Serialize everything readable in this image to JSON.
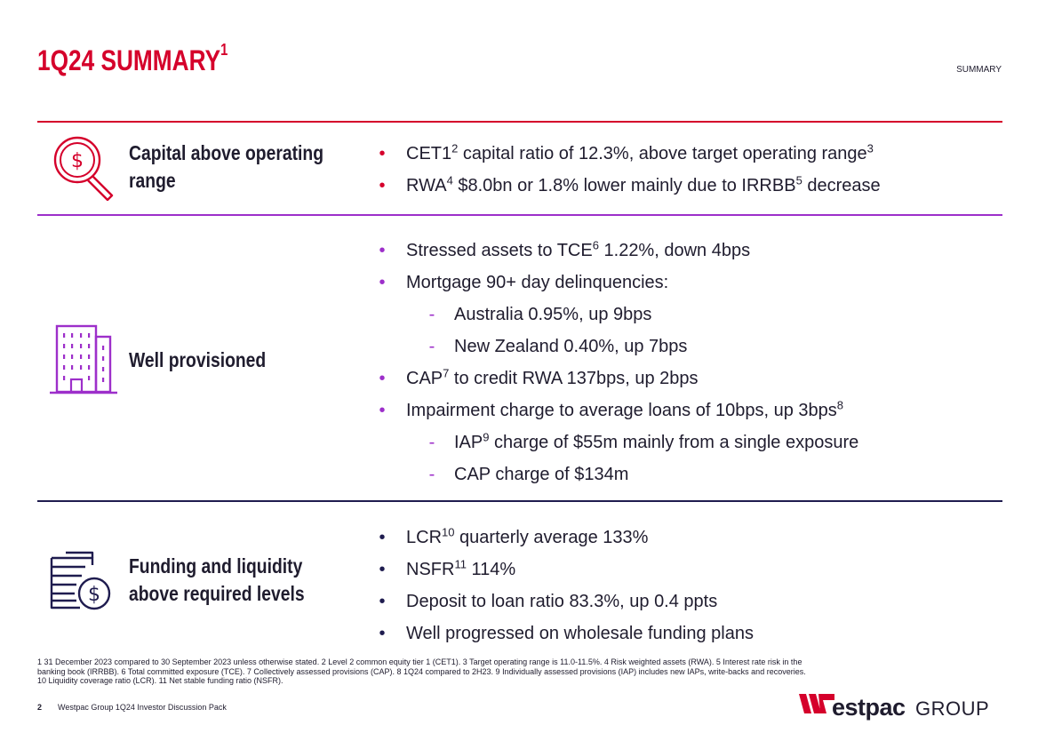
{
  "header": {
    "title": "1Q24 SUMMARY",
    "title_sup": "1",
    "section_tag": "SUMMARY"
  },
  "colors": {
    "red": "#d5002b",
    "purple": "#9d2fca",
    "navy": "#1f1c4f"
  },
  "sections": [
    {
      "icon": "dollar-magnifier-icon",
      "heading_line1": "Capital above operating",
      "heading_line2": "range",
      "bullets": [
        {
          "pre": "CET1",
          "sup": "2",
          "post": " capital ratio of 12.3%, above target operating range",
          "sup2": "3"
        },
        {
          "pre": "RWA",
          "sup": "4",
          "post": " $8.0bn or 1.8% lower mainly due to IRRBB",
          "sup2": "5",
          "post2": " decrease"
        }
      ]
    },
    {
      "icon": "building-icon",
      "heading": "Well provisioned",
      "bullets": [
        {
          "pre": "Stressed assets to TCE",
          "sup": "6",
          "post": " 1.22%, down 4bps"
        },
        {
          "text": "Mortgage 90+ day delinquencies:"
        },
        {
          "text": "Australia 0.95%, up 9bps"
        },
        {
          "text": "New Zealand 0.40%, up 7bps"
        },
        {
          "pre": "CAP",
          "sup": "7",
          "post": " to credit RWA 137bps, up 2bps"
        },
        {
          "pre": "Impairment charge to average loans of 10bps, up 3bps",
          "sup": "8"
        },
        {
          "pre": "IAP",
          "sup": "9",
          "post": " charge of $55m mainly from a single exposure"
        },
        {
          "text": "CAP charge of $134m"
        }
      ]
    },
    {
      "icon": "cash-stack-dollar-icon",
      "heading_line1": "Funding and liquidity",
      "heading_line2": "above required levels",
      "bullets": [
        {
          "pre": "LCR",
          "sup": "10",
          "post": " quarterly average 133%"
        },
        {
          "pre": "NSFR",
          "sup": "11",
          "post": " 114%"
        },
        {
          "text": "Deposit to loan ratio 83.3%, up 0.4 ppts"
        },
        {
          "text": "Well progressed on wholesale funding plans"
        }
      ]
    }
  ],
  "markers": {
    "bullet": "•",
    "dash": "-"
  },
  "footnotes": {
    "line1": "1 31 December 2023 compared to 30 September 2023 unless otherwise stated. 2 Level 2 common equity tier 1 (CET1). 3 Target operating range is 11.0-11.5%. 4 Risk weighted assets (RWA). 5 Interest rate risk in the",
    "line2": "banking book (IRRBB). 6 Total committed exposure (TCE). 7 Collectively assessed provisions (CAP). 8 1Q24 compared to 2H23. 9 Individually assessed provisions (IAP) includes new IAPs, write-backs and recoveries.",
    "line3": "10 Liquidity coverage ratio (LCR). 11 Net stable funding ratio (NSFR)."
  },
  "footer": {
    "page_number": "2",
    "doc_title": "Westpac Group 1Q24 Investor Discussion Pack",
    "logo_word": "estpac",
    "logo_group": "GROUP"
  }
}
